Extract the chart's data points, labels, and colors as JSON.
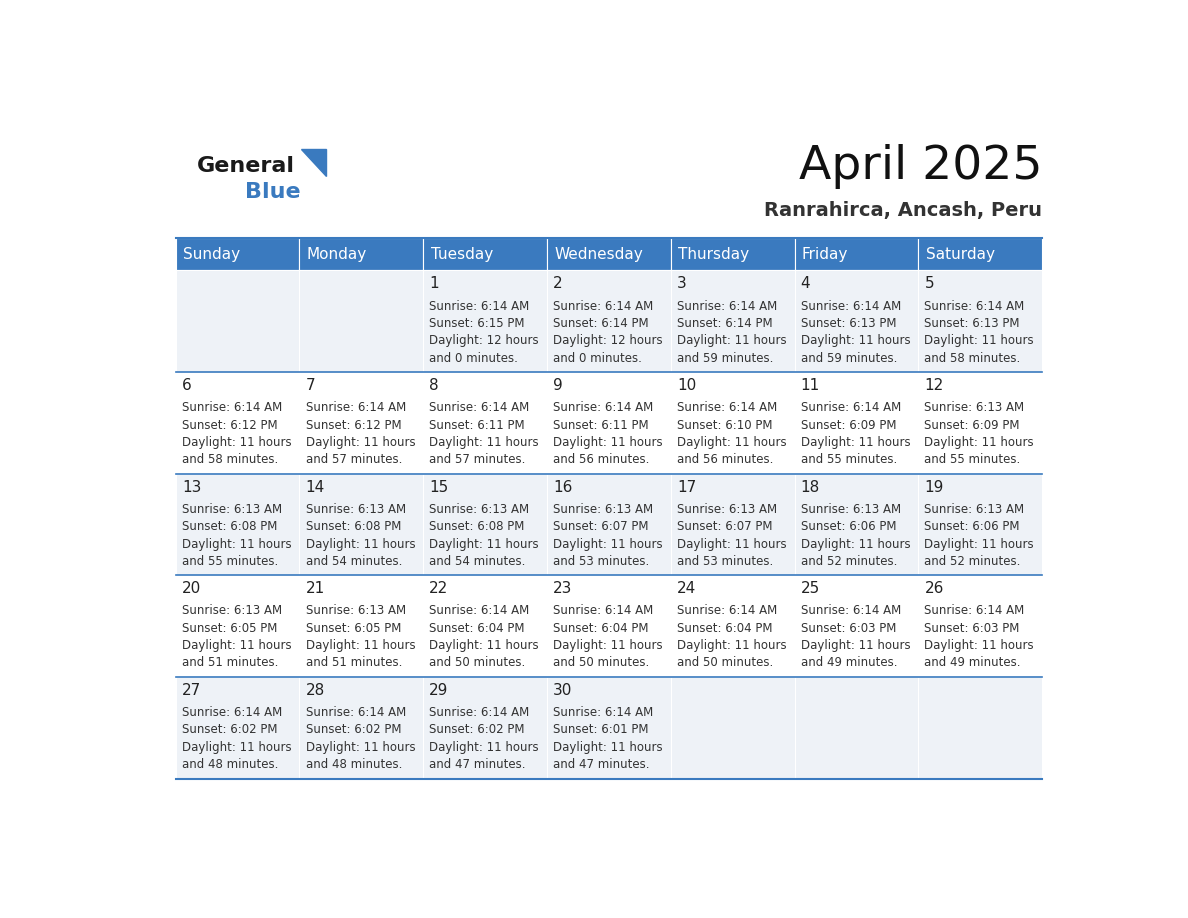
{
  "title": "April 2025",
  "subtitle": "Ranrahirca, Ancash, Peru",
  "header_bg_color": "#3a7abf",
  "header_text_color": "#ffffff",
  "cell_bg_odd": "#eef2f7",
  "cell_bg_even": "#ffffff",
  "text_color": "#333333",
  "days_of_week": [
    "Sunday",
    "Monday",
    "Tuesday",
    "Wednesday",
    "Thursday",
    "Friday",
    "Saturday"
  ],
  "calendar_data": [
    [
      {
        "day": "",
        "sunrise": "",
        "sunset": "",
        "daylight_h": "",
        "daylight_m": ""
      },
      {
        "day": "",
        "sunrise": "",
        "sunset": "",
        "daylight_h": "",
        "daylight_m": ""
      },
      {
        "day": "1",
        "sunrise": "6:14 AM",
        "sunset": "6:15 PM",
        "daylight_h": "12",
        "daylight_m": "0"
      },
      {
        "day": "2",
        "sunrise": "6:14 AM",
        "sunset": "6:14 PM",
        "daylight_h": "12",
        "daylight_m": "0"
      },
      {
        "day": "3",
        "sunrise": "6:14 AM",
        "sunset": "6:14 PM",
        "daylight_h": "11",
        "daylight_m": "59"
      },
      {
        "day": "4",
        "sunrise": "6:14 AM",
        "sunset": "6:13 PM",
        "daylight_h": "11",
        "daylight_m": "59"
      },
      {
        "day": "5",
        "sunrise": "6:14 AM",
        "sunset": "6:13 PM",
        "daylight_h": "11",
        "daylight_m": "58"
      }
    ],
    [
      {
        "day": "6",
        "sunrise": "6:14 AM",
        "sunset": "6:12 PM",
        "daylight_h": "11",
        "daylight_m": "58"
      },
      {
        "day": "7",
        "sunrise": "6:14 AM",
        "sunset": "6:12 PM",
        "daylight_h": "11",
        "daylight_m": "57"
      },
      {
        "day": "8",
        "sunrise": "6:14 AM",
        "sunset": "6:11 PM",
        "daylight_h": "11",
        "daylight_m": "57"
      },
      {
        "day": "9",
        "sunrise": "6:14 AM",
        "sunset": "6:11 PM",
        "daylight_h": "11",
        "daylight_m": "56"
      },
      {
        "day": "10",
        "sunrise": "6:14 AM",
        "sunset": "6:10 PM",
        "daylight_h": "11",
        "daylight_m": "56"
      },
      {
        "day": "11",
        "sunrise": "6:14 AM",
        "sunset": "6:09 PM",
        "daylight_h": "11",
        "daylight_m": "55"
      },
      {
        "day": "12",
        "sunrise": "6:13 AM",
        "sunset": "6:09 PM",
        "daylight_h": "11",
        "daylight_m": "55"
      }
    ],
    [
      {
        "day": "13",
        "sunrise": "6:13 AM",
        "sunset": "6:08 PM",
        "daylight_h": "11",
        "daylight_m": "55"
      },
      {
        "day": "14",
        "sunrise": "6:13 AM",
        "sunset": "6:08 PM",
        "daylight_h": "11",
        "daylight_m": "54"
      },
      {
        "day": "15",
        "sunrise": "6:13 AM",
        "sunset": "6:08 PM",
        "daylight_h": "11",
        "daylight_m": "54"
      },
      {
        "day": "16",
        "sunrise": "6:13 AM",
        "sunset": "6:07 PM",
        "daylight_h": "11",
        "daylight_m": "53"
      },
      {
        "day": "17",
        "sunrise": "6:13 AM",
        "sunset": "6:07 PM",
        "daylight_h": "11",
        "daylight_m": "53"
      },
      {
        "day": "18",
        "sunrise": "6:13 AM",
        "sunset": "6:06 PM",
        "daylight_h": "11",
        "daylight_m": "52"
      },
      {
        "day": "19",
        "sunrise": "6:13 AM",
        "sunset": "6:06 PM",
        "daylight_h": "11",
        "daylight_m": "52"
      }
    ],
    [
      {
        "day": "20",
        "sunrise": "6:13 AM",
        "sunset": "6:05 PM",
        "daylight_h": "11",
        "daylight_m": "51"
      },
      {
        "day": "21",
        "sunrise": "6:13 AM",
        "sunset": "6:05 PM",
        "daylight_h": "11",
        "daylight_m": "51"
      },
      {
        "day": "22",
        "sunrise": "6:14 AM",
        "sunset": "6:04 PM",
        "daylight_h": "11",
        "daylight_m": "50"
      },
      {
        "day": "23",
        "sunrise": "6:14 AM",
        "sunset": "6:04 PM",
        "daylight_h": "11",
        "daylight_m": "50"
      },
      {
        "day": "24",
        "sunrise": "6:14 AM",
        "sunset": "6:04 PM",
        "daylight_h": "11",
        "daylight_m": "50"
      },
      {
        "day": "25",
        "sunrise": "6:14 AM",
        "sunset": "6:03 PM",
        "daylight_h": "11",
        "daylight_m": "49"
      },
      {
        "day": "26",
        "sunrise": "6:14 AM",
        "sunset": "6:03 PM",
        "daylight_h": "11",
        "daylight_m": "49"
      }
    ],
    [
      {
        "day": "27",
        "sunrise": "6:14 AM",
        "sunset": "6:02 PM",
        "daylight_h": "11",
        "daylight_m": "48"
      },
      {
        "day": "28",
        "sunrise": "6:14 AM",
        "sunset": "6:02 PM",
        "daylight_h": "11",
        "daylight_m": "48"
      },
      {
        "day": "29",
        "sunrise": "6:14 AM",
        "sunset": "6:02 PM",
        "daylight_h": "11",
        "daylight_m": "47"
      },
      {
        "day": "30",
        "sunrise": "6:14 AM",
        "sunset": "6:01 PM",
        "daylight_h": "11",
        "daylight_m": "47"
      },
      {
        "day": "",
        "sunrise": "",
        "sunset": "",
        "daylight_h": "",
        "daylight_m": ""
      },
      {
        "day": "",
        "sunrise": "",
        "sunset": "",
        "daylight_h": "",
        "daylight_m": ""
      },
      {
        "day": "",
        "sunrise": "",
        "sunset": "",
        "daylight_h": "",
        "daylight_m": ""
      }
    ]
  ],
  "logo_general_color": "#1a1a1a",
  "logo_blue_color": "#3a7abf",
  "title_fontsize": 34,
  "subtitle_fontsize": 14,
  "header_fontsize": 11,
  "day_num_fontsize": 11,
  "cell_text_fontsize": 8.5
}
